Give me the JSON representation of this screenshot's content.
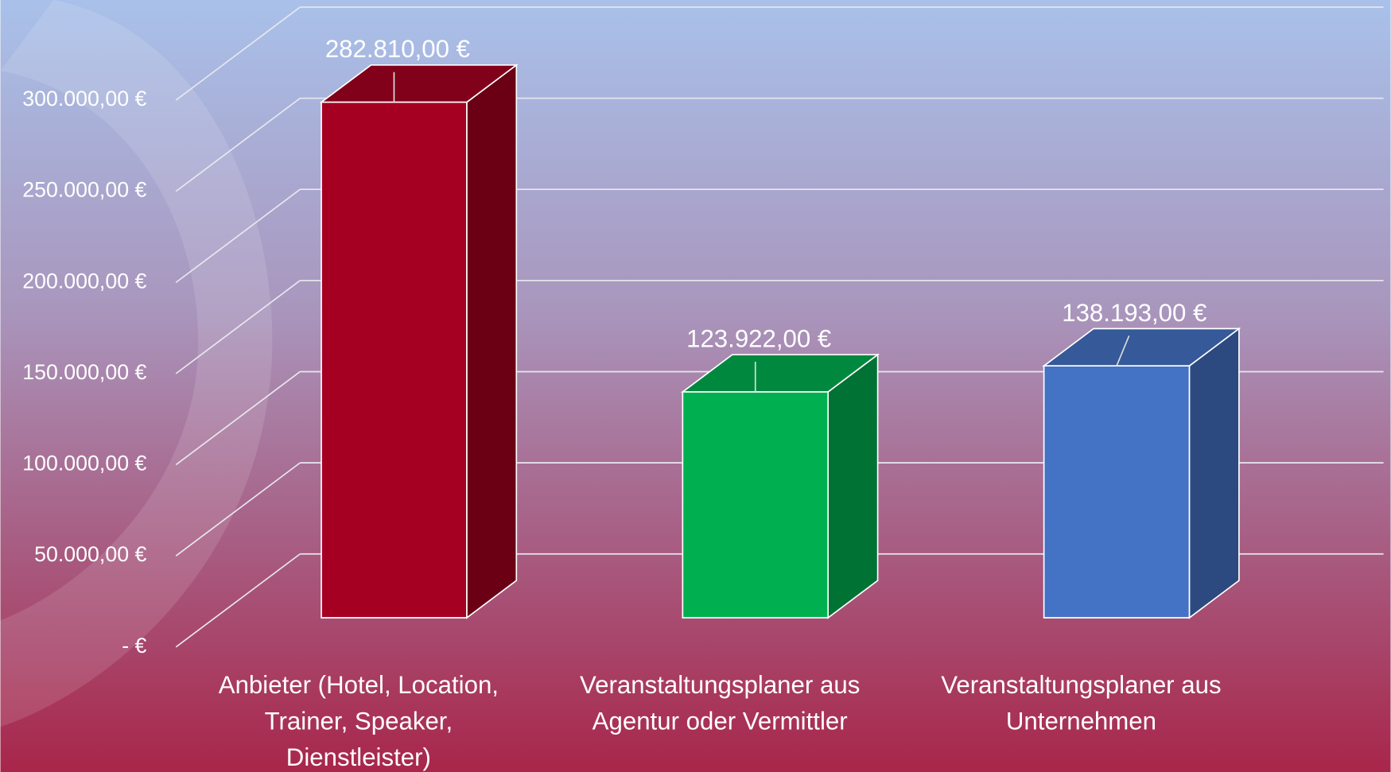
{
  "chart_data": {
    "type": "bar3d",
    "categories": [
      "Anbieter (Hotel, Location, Trainer, Speaker, Dienstleister)",
      "Veranstaltungsplaner aus Agentur oder Vermittler",
      "Veranstaltungsplaner aus Unternehmen"
    ],
    "values": [
      282810,
      123922,
      138193
    ],
    "value_labels": [
      "282.810,00 €",
      "123.922,00 €",
      "138.193,00 €"
    ],
    "colors": [
      "#a50021",
      "#00b050",
      "#4472c4"
    ],
    "ylim": [
      0,
      300000
    ],
    "yticks": [
      {
        "value": 0,
        "label": "-  €"
      },
      {
        "value": 50000,
        "label": "50.000,00 €"
      },
      {
        "value": 100000,
        "label": "100.000,00 €"
      },
      {
        "value": 150000,
        "label": "150.000,00 €"
      },
      {
        "value": 200000,
        "label": "200.000,00 €"
      },
      {
        "value": 250000,
        "label": "250.000,00 €"
      },
      {
        "value": 300000,
        "label": "300.000,00 €"
      }
    ],
    "grid": true
  }
}
